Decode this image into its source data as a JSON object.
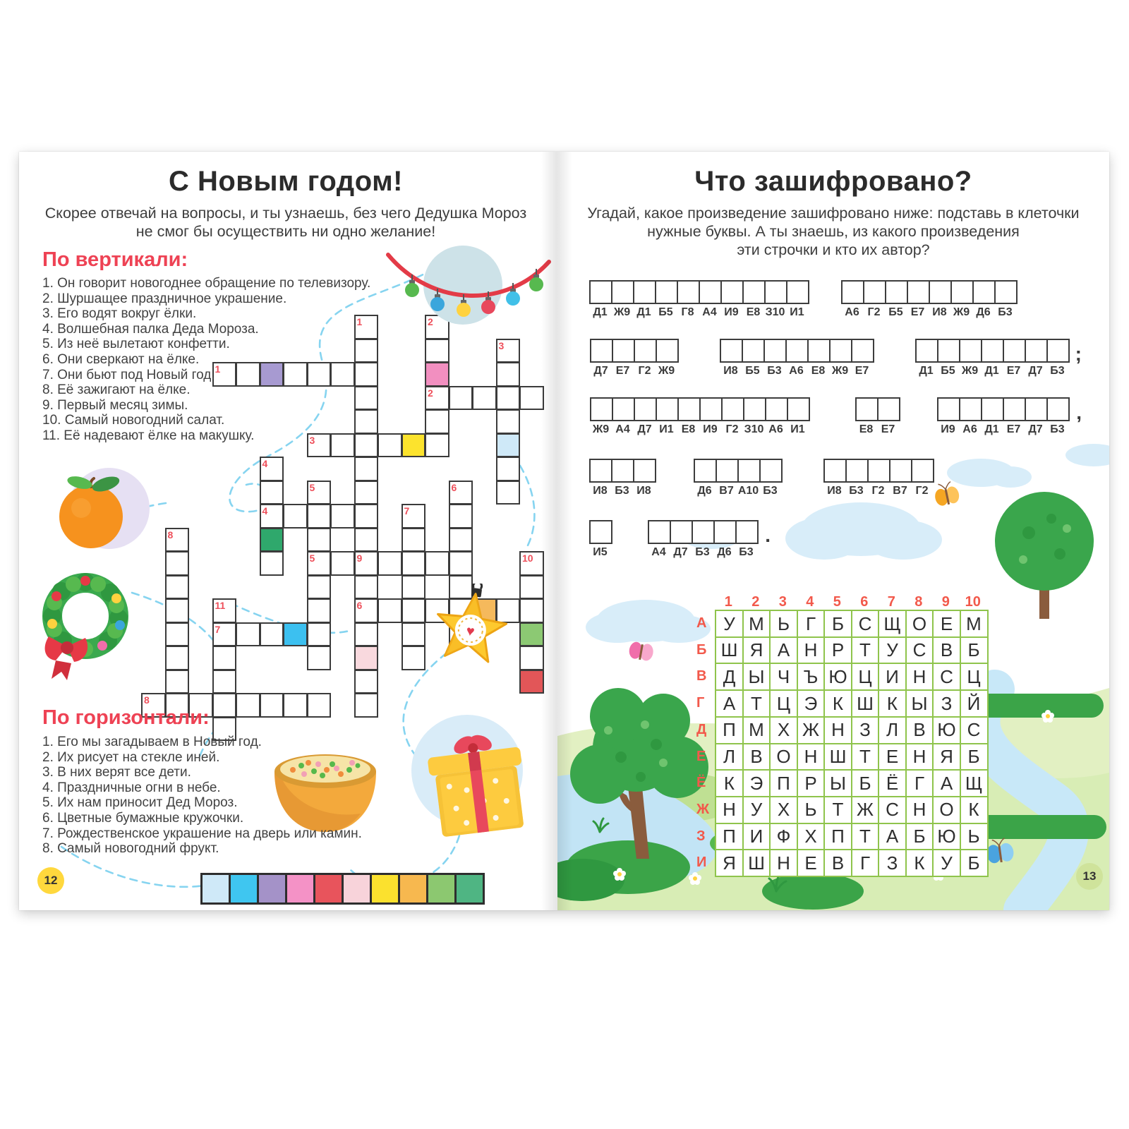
{
  "left_page": {
    "page_number": "12",
    "title": "С Новым годом!",
    "subtitle_lines": [
      "Скорее отвечай на вопросы, и ты узнаешь, без чего Дедушка Мороз",
      "не смог бы осуществить ни одно желание!"
    ],
    "vertical_heading": "По вертикали:",
    "vertical_clues": [
      "1. Он говорит новогоднее обращение по телевизору.",
      "2. Шуршащее праздничное украшение.",
      "3. Его водят вокруг ёлки.",
      "4. Волшебная палка Деда Мороза.",
      "5. Из неё вылетают конфетти.",
      "6. Они сверкают на ёлке.",
      "7. Они бьют под Новый год.",
      "8. Её зажигают на ёлке.",
      "9. Первый месяц зимы.",
      "10. Самый новогодний салат.",
      "11. Её надевают ёлке на макушку."
    ],
    "horizontal_heading": "По горизонтали:",
    "horizontal_clues": [
      "1. Его мы загадываем в Новый год.",
      "2. Их рисует на стекле иней.",
      "3. В них верят все дети.",
      "4. Праздничные огни в небе.",
      "5. Их нам приносит Дед Мороз.",
      "6. Цветные бумажные кружочки.",
      "7. Рождественское украшение на дверь или камин.",
      "8. Самый новогодний фрукт."
    ],
    "crossword": {
      "words": [
        {
          "dir": "v",
          "label": "1",
          "col": 9,
          "row": 0,
          "len": 10
        },
        {
          "dir": "v",
          "label": "2",
          "col": 12,
          "row": 0,
          "len": 6
        },
        {
          "dir": "v",
          "label": "3",
          "col": 15,
          "row": 1,
          "len": 7
        },
        {
          "dir": "v",
          "label": "4",
          "col": 5,
          "row": 6,
          "len": 5
        },
        {
          "dir": "v",
          "label": "5",
          "col": 7,
          "row": 7,
          "len": 8
        },
        {
          "dir": "v",
          "label": "6",
          "col": 13,
          "row": 7,
          "len": 7
        },
        {
          "dir": "v",
          "label": "7",
          "col": 11,
          "row": 8,
          "len": 7
        },
        {
          "dir": "v",
          "label": "8",
          "col": 1,
          "row": 9,
          "len": 8
        },
        {
          "dir": "v",
          "label": "9",
          "col": 9,
          "row": 10,
          "len": 7
        },
        {
          "dir": "v",
          "label": "10",
          "col": 16,
          "row": 10,
          "len": 6
        },
        {
          "dir": "v",
          "label": "11",
          "col": 3,
          "row": 12,
          "len": 6
        },
        {
          "dir": "h",
          "label": "1",
          "col": 3,
          "row": 2,
          "len": 7
        },
        {
          "dir": "h",
          "label": "2",
          "col": 12,
          "row": 3,
          "len": 5
        },
        {
          "dir": "h",
          "label": "3",
          "col": 7,
          "row": 5,
          "len": 6
        },
        {
          "dir": "h",
          "label": "4",
          "col": 5,
          "row": 8,
          "len": 5
        },
        {
          "dir": "h",
          "label": "5",
          "col": 7,
          "row": 10,
          "len": 7
        },
        {
          "dir": "h",
          "label": "6",
          "col": 9,
          "row": 12,
          "len": 8
        },
        {
          "dir": "h",
          "label": "7",
          "col": 3,
          "row": 13,
          "len": 5
        },
        {
          "dir": "h",
          "label": "8",
          "col": 0,
          "row": 16,
          "len": 8
        }
      ],
      "colored_cells": [
        {
          "col": 5,
          "row": 2,
          "color": "#a79ad1"
        },
        {
          "col": 12,
          "row": 2,
          "color": "#f28fc0"
        },
        {
          "col": 11,
          "row": 5,
          "color": "#fce32d"
        },
        {
          "col": 15,
          "row": 5,
          "color": "#cfe9f8"
        },
        {
          "col": 5,
          "row": 9,
          "color": "#2fa86c"
        },
        {
          "col": 14,
          "row": 12,
          "color": "#f5b95c"
        },
        {
          "col": 6,
          "row": 13,
          "color": "#3cc0f0"
        },
        {
          "col": 16,
          "row": 13,
          "color": "#8cc973"
        },
        {
          "col": 9,
          "row": 14,
          "color": "#f9d9de"
        },
        {
          "col": 16,
          "row": 15,
          "color": "#e25658"
        }
      ]
    },
    "palette_strip": [
      "#cfe9f8",
      "#3fc6f0",
      "#a492c8",
      "#f492c6",
      "#e8545c",
      "#f8d3da",
      "#fbe12e",
      "#f7b84f",
      "#8cc870",
      "#4fb583"
    ]
  },
  "right_page": {
    "page_number": "13",
    "title": "Что зашифровано?",
    "subtitle_lines": [
      "Угадай, какое произведение зашифровано ниже: подставь в клеточки",
      "нужные буквы. А ты знаешь, из какого произведения",
      "эти строчки и кто их автор?"
    ],
    "cipher_rows": [
      {
        "groups": [
          {
            "labels": [
              "Д1",
              "Ж9",
              "Д1",
              "Б5",
              "Г8",
              "А4",
              "И9",
              "Е8",
              "З10",
              "И1"
            ]
          },
          {
            "labels": [
              "А6",
              "Г2",
              "Б5",
              "Е7",
              "И8",
              "Ж9",
              "Д6",
              "Б3"
            ]
          }
        ]
      },
      {
        "groups": [
          {
            "labels": [
              "Д7",
              "Е7",
              "Г2",
              "Ж9"
            ]
          },
          {
            "labels": [
              "И8",
              "Б5",
              "Б3",
              "А6",
              "Е8",
              "Ж9",
              "Е7"
            ]
          },
          {
            "labels": [
              "Д1",
              "Б5",
              "Ж9",
              "Д1",
              "Е7",
              "Д7",
              "Б3"
            ],
            "suffix": ";"
          }
        ]
      },
      {
        "groups": [
          {
            "labels": [
              "Ж9",
              "А4",
              "Д7",
              "И1",
              "Е8",
              "И9",
              "Г2",
              "З10",
              "А6",
              "И1"
            ]
          },
          {
            "labels": [
              "Е8",
              "Е7"
            ]
          },
          {
            "labels": [
              "И9",
              "А6",
              "Д1",
              "Е7",
              "Д7",
              "Б3"
            ],
            "suffix": ","
          }
        ]
      },
      {
        "groups": [
          {
            "labels": [
              "И8",
              "Б3",
              "И8"
            ]
          },
          {
            "labels": [
              "Д6",
              "В7",
              "А10",
              "Б3"
            ]
          },
          {
            "labels": [
              "И8",
              "Б3",
              "Г2",
              "В7",
              "Г2"
            ]
          }
        ]
      },
      {
        "groups": [
          {
            "labels": [
              "И5"
            ]
          },
          {
            "labels": [
              "А4",
              "Д7",
              "Б3",
              "Д6",
              "Б3"
            ],
            "suffix": "."
          }
        ]
      }
    ],
    "letter_grid": {
      "col_numbers": [
        "1",
        "2",
        "3",
        "4",
        "5",
        "6",
        "7",
        "8",
        "9",
        "10"
      ],
      "row_labels": [
        "А",
        "Б",
        "В",
        "Г",
        "Д",
        "Е",
        "Ё",
        "Ж",
        "З",
        "И"
      ],
      "rows": [
        [
          "У",
          "М",
          "Ь",
          "Г",
          "Б",
          "С",
          "Щ",
          "О",
          "Е",
          "М"
        ],
        [
          "Ш",
          "Я",
          "А",
          "Н",
          "Р",
          "Т",
          "У",
          "С",
          "В",
          "Б"
        ],
        [
          "Д",
          "Ы",
          "Ч",
          "Ъ",
          "Ю",
          "Ц",
          "И",
          "Н",
          "С",
          "Ц"
        ],
        [
          "А",
          "Т",
          "Ц",
          "Э",
          "К",
          "Ш",
          "К",
          "Ы",
          "З",
          "Й"
        ],
        [
          "П",
          "М",
          "Х",
          "Ж",
          "Н",
          "З",
          "Л",
          "В",
          "Ю",
          "С"
        ],
        [
          "Л",
          "В",
          "О",
          "Н",
          "Ш",
          "Т",
          "Е",
          "Н",
          "Я",
          "Б"
        ],
        [
          "К",
          "Э",
          "П",
          "Р",
          "Ы",
          "Б",
          "Ё",
          "Г",
          "А",
          "Щ"
        ],
        [
          "Н",
          "У",
          "Х",
          "Ь",
          "Т",
          "Ж",
          "С",
          "Н",
          "О",
          "К"
        ],
        [
          "П",
          "И",
          "Ф",
          "Х",
          "П",
          "Т",
          "А",
          "Б",
          "Ю",
          "Ь"
        ],
        [
          "Я",
          "Ш",
          "Н",
          "Е",
          "В",
          "Г",
          "З",
          "К",
          "У",
          "Б"
        ]
      ]
    }
  },
  "colors": {
    "heading_red": "#ee4254",
    "crossword_number_red": "#ee4f5a",
    "grid_green": "#8fc44c",
    "grid_label_red": "#f2594b",
    "badge_left": "#ffd83d",
    "badge_right": "#cfe39b"
  }
}
